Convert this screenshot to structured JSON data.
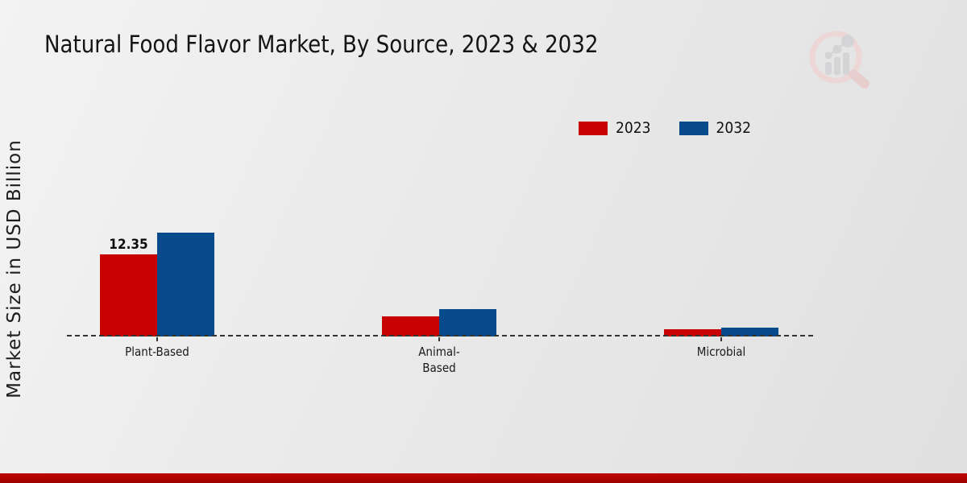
{
  "header": {
    "title": "Natural Food Flavor Market, By Source, 2023 & 2032"
  },
  "axes": {
    "y_label": "Market Size in USD Billion"
  },
  "chart_data": {
    "type": "bar",
    "title": "Natural Food Flavor Market, By Source, 2023 & 2032",
    "xlabel": "",
    "ylabel": "Market Size in USD Billion",
    "categories": [
      "Plant-Based",
      "Animal-\nBased",
      "Microbial"
    ],
    "series": [
      {
        "name": "2023",
        "color": "#c80201",
        "values": [
          12.35,
          3.0,
          1.1
        ]
      },
      {
        "name": "2032",
        "color": "#084b8d",
        "values": [
          15.6,
          4.1,
          1.3
        ]
      }
    ],
    "value_labels": [
      {
        "series": "2023",
        "category_index": 0,
        "text": "12.35"
      }
    ],
    "ylim": [
      0,
      17.5
    ],
    "grid": false,
    "baseline_style": "dashed",
    "legend_position": "upper-right",
    "y_tick_labels_visible": false
  },
  "branding": {
    "logo_icon": "market-research-chart-magnifier-watermark",
    "footer_bar_color": "#b80400",
    "logo_ring_color": "#eed4d4",
    "logo_bar_color": "#d2d2d5"
  }
}
